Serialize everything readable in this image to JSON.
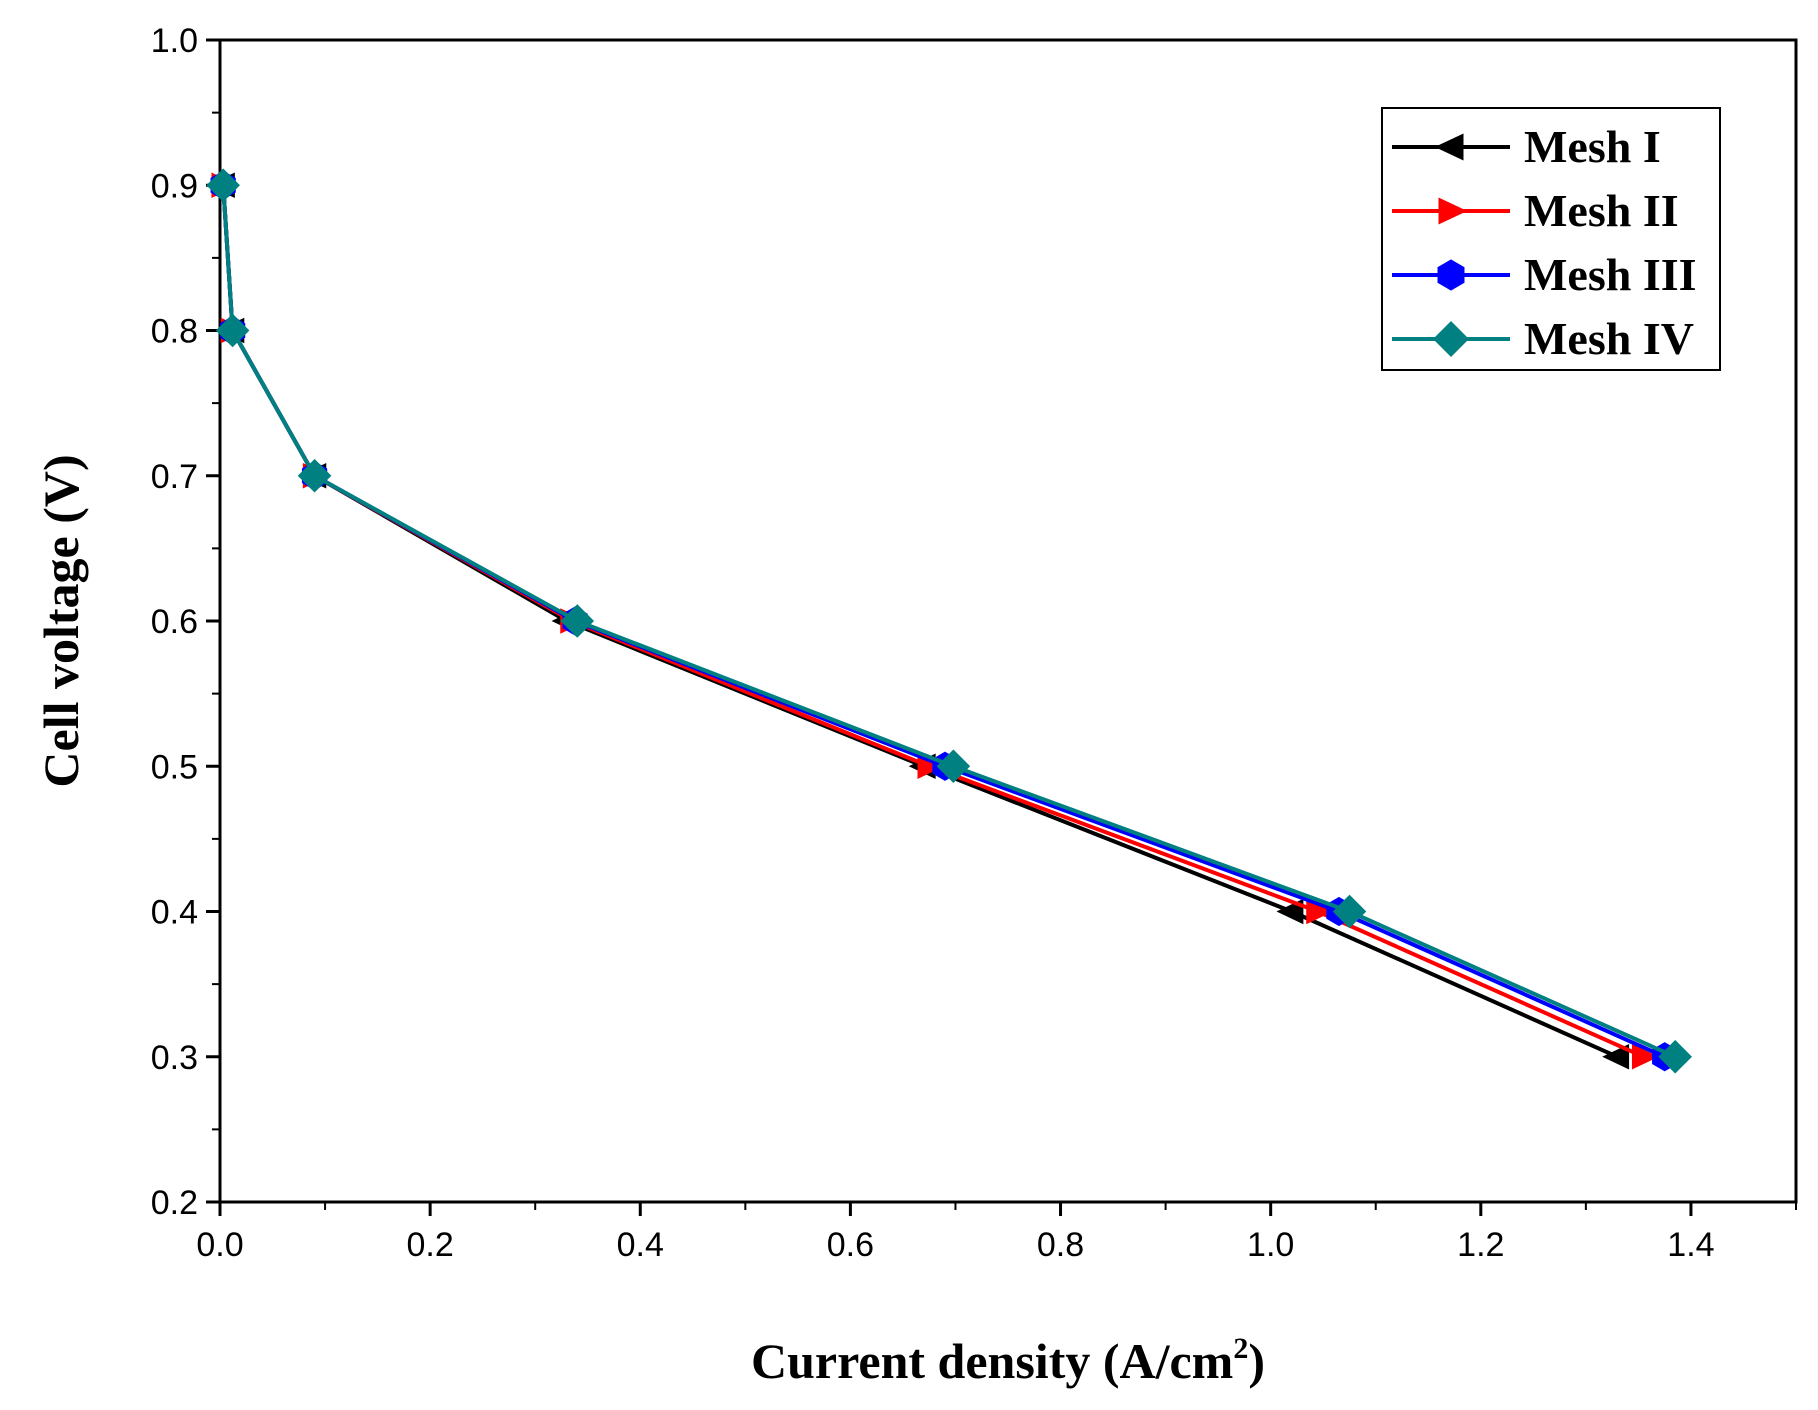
{
  "chart_data": {
    "type": "line",
    "xlabel": "Current density (A/cm",
    "xlabel_sup": "2",
    "xlabel_close": ")",
    "ylabel": "Cell voltage (V)",
    "xlim": [
      0.0,
      1.5
    ],
    "ylim": [
      0.2,
      1.0
    ],
    "xticks": [
      "0.0",
      "0.2",
      "0.4",
      "0.6",
      "0.8",
      "1.0",
      "1.2",
      "1.4"
    ],
    "yticks": [
      "0.2",
      "0.3",
      "0.4",
      "0.5",
      "0.6",
      "0.7",
      "0.8",
      "0.9",
      "1.0"
    ],
    "legend_position": "top-right",
    "series": [
      {
        "name": "Mesh I",
        "color": "#000000",
        "marker": "triangle-left",
        "x": [
          0.003,
          0.012,
          0.09,
          0.33,
          0.67,
          1.02,
          1.33
        ],
        "y": [
          0.9,
          0.8,
          0.7,
          0.6,
          0.5,
          0.4,
          0.3
        ]
      },
      {
        "name": "Mesh II",
        "color": "#ff0000",
        "marker": "triangle-right",
        "x": [
          0.003,
          0.012,
          0.09,
          0.335,
          0.675,
          1.045,
          1.355
        ],
        "y": [
          0.9,
          0.8,
          0.7,
          0.6,
          0.5,
          0.4,
          0.3
        ]
      },
      {
        "name": "Mesh III",
        "color": "#0000ff",
        "marker": "hexagon",
        "x": [
          0.003,
          0.012,
          0.09,
          0.338,
          0.69,
          1.065,
          1.375
        ],
        "y": [
          0.9,
          0.8,
          0.7,
          0.6,
          0.5,
          0.4,
          0.3
        ]
      },
      {
        "name": "Mesh IV",
        "color": "#008080",
        "marker": "diamond",
        "x": [
          0.003,
          0.012,
          0.09,
          0.34,
          0.698,
          1.075,
          1.385
        ],
        "y": [
          0.9,
          0.8,
          0.7,
          0.6,
          0.5,
          0.4,
          0.3
        ]
      }
    ]
  }
}
